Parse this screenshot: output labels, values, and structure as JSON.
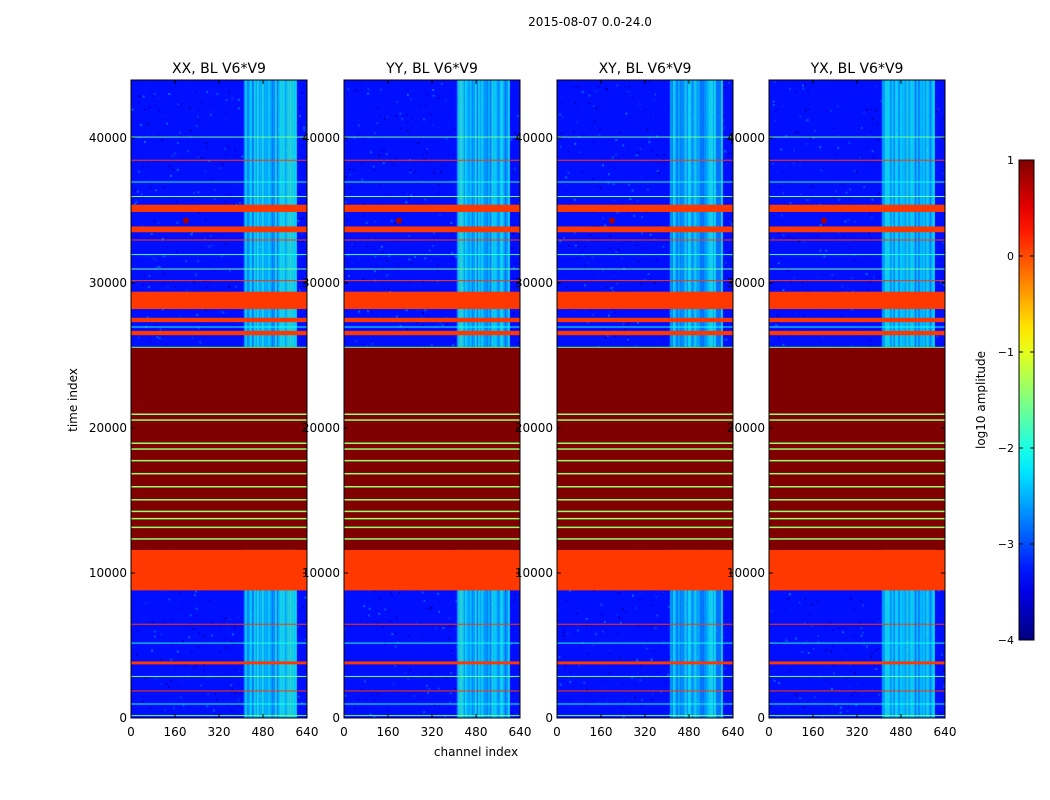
{
  "figure": {
    "suptitle": "2015-08-07 0.0-24.0"
  },
  "chart_data": {
    "type": "heatmap",
    "xlabel": "channel index",
    "ylabel": "time index",
    "xlim": [
      0,
      640
    ],
    "ylim": [
      0,
      44000
    ],
    "xticks": [
      0,
      160,
      320,
      480,
      640
    ],
    "xtick_labels": [
      "0",
      "160",
      "320",
      "480",
      "640"
    ],
    "yticks": [
      0,
      10000,
      20000,
      30000,
      40000
    ],
    "ytick_labels": [
      "0",
      "10000",
      "20000",
      "30000",
      "40000"
    ],
    "colormap": "jet",
    "colorbar": {
      "label": "log10 amplitude",
      "min": -4,
      "max": 1,
      "ticks": [
        1,
        0,
        -1,
        -2,
        -3,
        -4
      ],
      "tick_labels": [
        "1",
        "0",
        "−1",
        "−2",
        "−3",
        "−4"
      ]
    },
    "panels": [
      {
        "title": "XX, BL V6*V9"
      },
      {
        "title": "YY, BL V6*V9"
      },
      {
        "title": "XY, BL V6*V9"
      },
      {
        "title": "YX, BL V6*V9"
      }
    ],
    "description_of_structure": {
      "noise_level_log10": -3.3,
      "active_channel_band": [
        410,
        600
      ],
      "active_band_level_log10": -2.3,
      "flagged_block_dark": [
        11600,
        25600
      ],
      "flagged_block_dark_level_log10": 1,
      "flagged_block_orange": [
        8800,
        11600
      ],
      "flagged_block_orange_level_log10": 0.1,
      "orange_stripe_bands": [
        [
          28200,
          29400
        ],
        [
          34900,
          35400
        ],
        [
          33500,
          33900
        ],
        [
          3700,
          3900
        ],
        [
          26400,
          26700
        ],
        [
          27300,
          27600
        ]
      ],
      "thin_line_times": [
        40100,
        38500,
        37000,
        36000,
        33000,
        32000,
        31000,
        30200,
        27000,
        25600,
        6500,
        5200,
        2900,
        1900,
        1000,
        200
      ],
      "dark_block_light_lines": [
        21000,
        20600,
        19000,
        18600,
        17800,
        16900,
        16000,
        15100,
        14300,
        13800,
        13200,
        12400
      ]
    }
  }
}
